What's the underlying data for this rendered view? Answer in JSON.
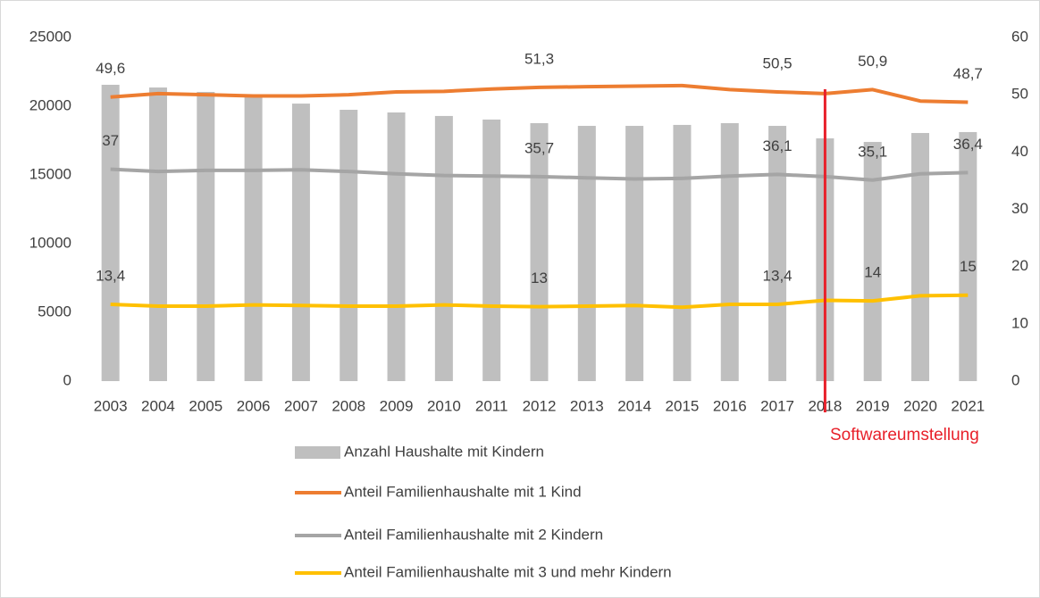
{
  "chart_data": {
    "type": "combo",
    "categories": [
      "2003",
      "2004",
      "2005",
      "2006",
      "2007",
      "2008",
      "2009",
      "2010",
      "2011",
      "2012",
      "2013",
      "2014",
      "2015",
      "2016",
      "2017",
      "2018",
      "2019",
      "2020",
      "2021"
    ],
    "ylim": [
      0,
      25000
    ],
    "yticks": [
      0,
      5000,
      10000,
      15000,
      20000,
      25000
    ],
    "y2lim": [
      0,
      60
    ],
    "y2ticks": [
      0,
      10,
      20,
      30,
      40,
      50,
      60
    ],
    "grid": false,
    "legend": "bottom",
    "series": [
      {
        "name": "Anzahl Haushalte mit Kindern",
        "type": "bar",
        "axis": "y",
        "color": "#bfbfbf",
        "values": [
          21560,
          21360,
          21040,
          20780,
          20190,
          19740,
          19545,
          19290,
          19030,
          18770,
          18570,
          18570,
          18640,
          18770,
          18570,
          17660,
          17400,
          18050,
          18120
        ]
      },
      {
        "name": "Anteil Familienhaushalte mit 1 Kind",
        "type": "line",
        "axis": "y2",
        "color": "#ed7d31",
        "values": [
          49.6,
          50.2,
          50.0,
          49.8,
          49.8,
          50.0,
          50.5,
          50.6,
          51.0,
          51.3,
          51.4,
          51.5,
          51.6,
          50.9,
          50.5,
          50.2,
          50.9,
          48.9,
          48.7
        ],
        "value_labels": [
          "49,6",
          null,
          null,
          null,
          null,
          null,
          null,
          null,
          null,
          "51,3",
          null,
          null,
          null,
          null,
          "50,5",
          null,
          "50,9",
          null,
          "48,7"
        ]
      },
      {
        "name": "Anteil Familienhaushalte mit 2 Kindern",
        "type": "line",
        "axis": "y2",
        "color": "#a5a5a5",
        "values": [
          37,
          36.6,
          36.8,
          36.8,
          36.9,
          36.6,
          36.2,
          35.9,
          35.8,
          35.7,
          35.5,
          35.3,
          35.4,
          35.8,
          36.1,
          35.7,
          35.1,
          36.2,
          36.4
        ],
        "value_labels": [
          "37",
          null,
          null,
          null,
          null,
          null,
          null,
          null,
          null,
          "35,7",
          null,
          null,
          null,
          null,
          "36,1",
          null,
          "35,1",
          null,
          "36,4"
        ]
      },
      {
        "name": "Anteil Familienhaushalte mit 3 und mehr Kindern",
        "type": "line",
        "axis": "y2",
        "color": "#ffc000",
        "values": [
          13.4,
          13.1,
          13.1,
          13.3,
          13.2,
          13.1,
          13.1,
          13.3,
          13.1,
          13.0,
          13.1,
          13.2,
          12.9,
          13.4,
          13.4,
          14.1,
          14.0,
          14.9,
          15.0
        ],
        "value_labels": [
          "13,4",
          null,
          null,
          null,
          null,
          null,
          null,
          null,
          null,
          "13",
          null,
          null,
          null,
          null,
          "13,4",
          null,
          "14",
          null,
          "15"
        ]
      }
    ],
    "annotations": [
      {
        "text": "Softwareumstellung",
        "at": "2018",
        "color": "#e8202a"
      }
    ]
  }
}
